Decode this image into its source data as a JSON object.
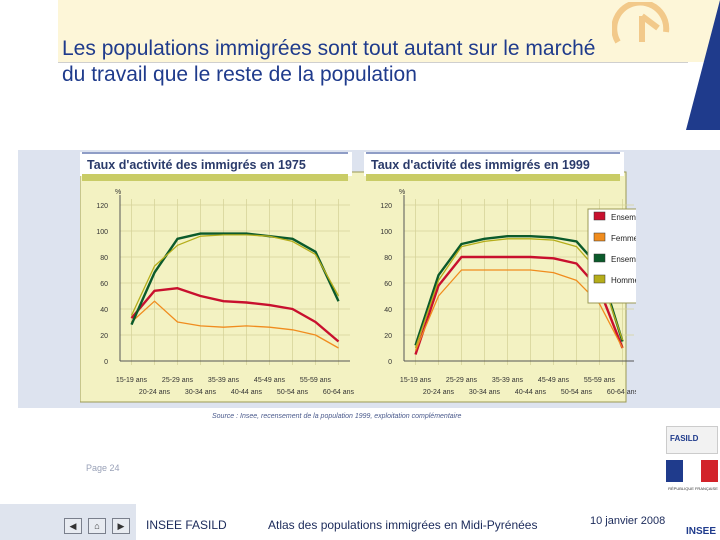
{
  "slide": {
    "title_line1": "Les populations immigrées sont tout autant sur le marché",
    "title_line2": "du travail que le reste de la population",
    "source": "Source : Insee, recensement de la population 1999, exploitation complémentaire",
    "page_label": "Page 24",
    "footer_left": "INSEE FASILD",
    "footer_center": "Atlas des populations immigrées en Midi-Pyrénées",
    "footer_date": "10 janvier 2008",
    "fasild_logo_text": "FASILD",
    "marianne_caption": "RÉPUBLIQUE FRANÇAISE",
    "insee_logo_text": "INSEE",
    "nav_prev_icon": "◀",
    "nav_home_icon": "⌂",
    "nav_next_icon": "▶"
  },
  "colors": {
    "title": "#1f3b8c",
    "plot_bg": "#f3f2c2",
    "header_strip": "#c9cc66",
    "ensemble_femmes": "#c8102e",
    "femmes_immigrees": "#f08c1e",
    "ensemble_hommes": "#0b5a2b",
    "hommes_immigres": "#b5ad1a"
  },
  "chart_data": [
    {
      "type": "line",
      "title": "Taux d'activité des immigrés en 1975",
      "ylabel": "%",
      "ylim": [
        0,
        120
      ],
      "yticks": [
        0,
        20,
        40,
        60,
        80,
        100,
        120
      ],
      "categories": [
        "15-19 ans",
        "20-24 ans",
        "25-29 ans",
        "30-34 ans",
        "35-39 ans",
        "40-44 ans",
        "45-49 ans",
        "50-54 ans",
        "55-59 ans",
        "60-64 ans"
      ],
      "grid": true,
      "series": [
        {
          "name": "Ensemble des femmes",
          "color": "#c8102e",
          "values": [
            33,
            54,
            56,
            50,
            46,
            45,
            43,
            40,
            30,
            15
          ]
        },
        {
          "name": "Femmes immigrées",
          "color": "#f08c1e",
          "values": [
            30,
            46,
            30,
            27,
            26,
            27,
            26,
            24,
            20,
            10
          ]
        },
        {
          "name": "Ensemble des hommes",
          "color": "#0b5a2b",
          "values": [
            28,
            68,
            94,
            98,
            98,
            98,
            96,
            94,
            84,
            46
          ]
        },
        {
          "name": "Hommes immigrés",
          "color": "#b5ad1a",
          "values": [
            35,
            73,
            89,
            96,
            97,
            97,
            96,
            92,
            82,
            50
          ]
        }
      ]
    },
    {
      "type": "line",
      "title": "Taux d'activité des immigrés en 1999",
      "ylabel": "%",
      "ylim": [
        0,
        120
      ],
      "yticks": [
        0,
        20,
        40,
        60,
        80,
        100,
        120
      ],
      "categories": [
        "15-19 ans",
        "20-24 ans",
        "25-29 ans",
        "30-34 ans",
        "35-39 ans",
        "40-44 ans",
        "45-49 ans",
        "50-54 ans",
        "55-59 ans",
        "60-64 ans"
      ],
      "grid": true,
      "legend_position": "right",
      "series": [
        {
          "name": "Ensemble des femmes",
          "color": "#c8102e",
          "values": [
            5,
            58,
            80,
            80,
            80,
            80,
            79,
            75,
            55,
            10
          ]
        },
        {
          "name": "Femmes immigrées",
          "color": "#f08c1e",
          "values": [
            8,
            50,
            70,
            70,
            70,
            70,
            68,
            62,
            44,
            10
          ]
        },
        {
          "name": "Ensemble des hommes",
          "color": "#0b5a2b",
          "values": [
            12,
            66,
            90,
            94,
            96,
            96,
            95,
            92,
            72,
            15
          ]
        },
        {
          "name": "Hommes immigrés",
          "color": "#b5ad1a",
          "values": [
            10,
            62,
            88,
            92,
            94,
            94,
            93,
            88,
            68,
            16
          ]
        }
      ]
    }
  ]
}
